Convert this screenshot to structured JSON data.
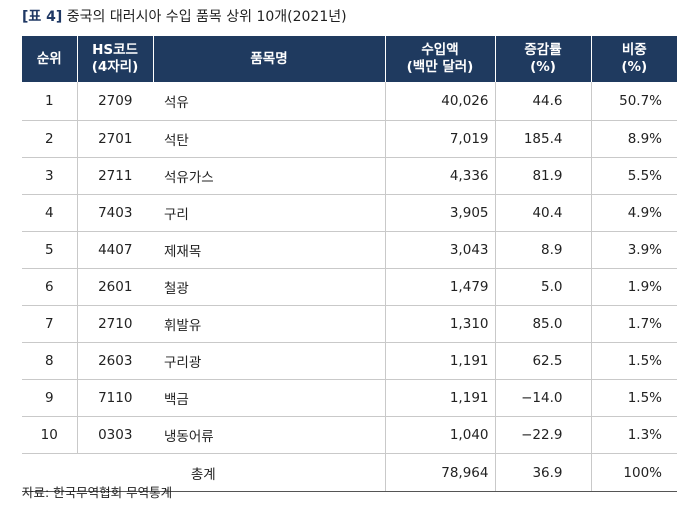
{
  "title": {
    "tag": "[표 4]",
    "text": "중국의 대러시아 수입 품목 상위 10개(2021년)"
  },
  "headers": {
    "rank": "순위",
    "hs_line1": "HS코드",
    "hs_line2": "(4자리)",
    "item": "품목명",
    "import_line1": "수입액",
    "import_line2": "(백만 달러)",
    "growth_line1": "증감률",
    "growth_line2": "(%)",
    "share_line1": "비중",
    "share_line2": "(%)"
  },
  "rows": [
    {
      "rank": "1",
      "hs": "2709",
      "item": "석유",
      "amount": "40,026",
      "growth": "44.6",
      "share": "50.7%"
    },
    {
      "rank": "2",
      "hs": "2701",
      "item": "석탄",
      "amount": "7,019",
      "growth": "185.4",
      "share": "8.9%"
    },
    {
      "rank": "3",
      "hs": "2711",
      "item": "석유가스",
      "amount": "4,336",
      "growth": "81.9",
      "share": "5.5%"
    },
    {
      "rank": "4",
      "hs": "7403",
      "item": "구리",
      "amount": "3,905",
      "growth": "40.4",
      "share": "4.9%"
    },
    {
      "rank": "5",
      "hs": "4407",
      "item": "제재목",
      "amount": "3,043",
      "growth": "8.9",
      "share": "3.9%"
    },
    {
      "rank": "6",
      "hs": "2601",
      "item": "철광",
      "amount": "1,479",
      "growth": "5.0",
      "share": "1.9%"
    },
    {
      "rank": "7",
      "hs": "2710",
      "item": "휘발유",
      "amount": "1,310",
      "growth": "85.0",
      "share": "1.7%"
    },
    {
      "rank": "8",
      "hs": "2603",
      "item": "구리광",
      "amount": "1,191",
      "growth": "62.5",
      "share": "1.5%"
    },
    {
      "rank": "9",
      "hs": "7110",
      "item": "백금",
      "amount": "1,191",
      "growth": "−14.0",
      "share": "1.5%"
    },
    {
      "rank": "10",
      "hs": "0303",
      "item": "냉동어류",
      "amount": "1,040",
      "growth": "−22.9",
      "share": "1.3%"
    }
  ],
  "total": {
    "label": "총계",
    "amount": "78,964",
    "growth": "36.9",
    "share": "100%"
  },
  "source": "자료: 한국무역협회 무역통계",
  "colors": {
    "header_bg": "#1f3a5f",
    "header_text": "#ffffff",
    "title_tag": "#1f3864"
  }
}
